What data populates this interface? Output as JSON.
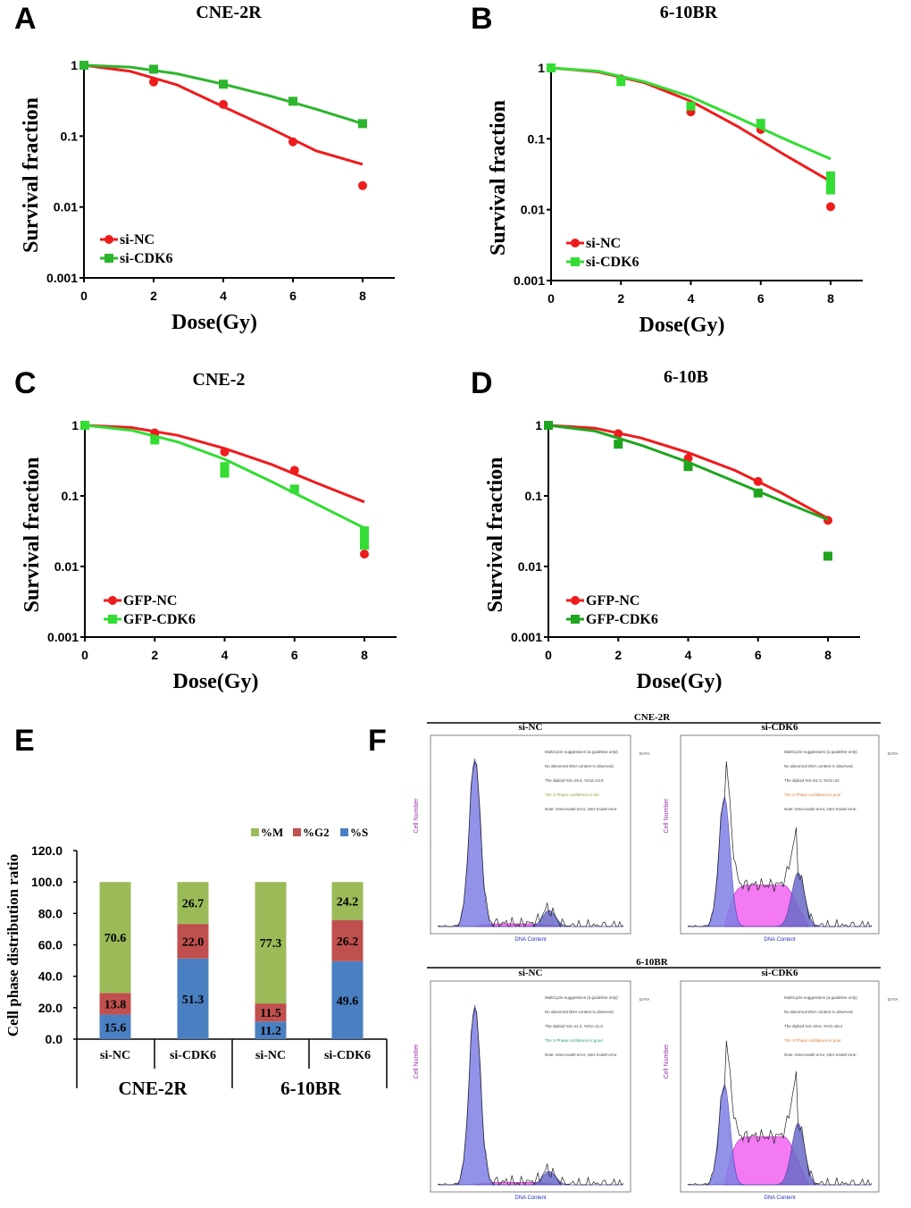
{
  "panel_letters": [
    "A",
    "B",
    "C",
    "D",
    "E",
    "F"
  ],
  "chart_data": [
    {
      "type": "line",
      "panel": "A",
      "title": "CNE-2R",
      "xlabel": "Dose(Gy)",
      "ylabel": "Survival fraction",
      "xlim": [
        0,
        8
      ],
      "ylim": [
        0.001,
        1
      ],
      "yscale": "log",
      "xticks": [
        "0",
        "2",
        "4",
        "6",
        "8"
      ],
      "yticks": [
        "1",
        "0.1",
        "0.01",
        "0.001"
      ],
      "series": [
        {
          "name": "si-NC",
          "color": "#ee1c1c",
          "marker": "circle",
          "x": [
            0,
            2,
            4,
            6,
            8
          ],
          "y": [
            1,
            0.58,
            0.28,
            0.083,
            0.02
          ],
          "fit": [
            1,
            0.82,
            0.53,
            0.26,
            0.13,
            0.062,
            0.04
          ]
        },
        {
          "name": "si-CDK6",
          "color": "#2eb52e",
          "marker": "square",
          "x": [
            0,
            2,
            4,
            6,
            8
          ],
          "y": [
            1,
            0.88,
            0.54,
            0.31,
            0.15
          ],
          "fit": [
            1,
            0.94,
            0.76,
            0.54,
            0.37,
            0.24,
            0.15
          ]
        }
      ]
    },
    {
      "type": "line",
      "panel": "B",
      "title": "6-10BR",
      "xlabel": "Dose(Gy)",
      "ylabel": "Survival fraction",
      "xlim": [
        0,
        8
      ],
      "ylim": [
        0.001,
        1
      ],
      "yscale": "log",
      "xticks": [
        "0",
        "2",
        "4",
        "6",
        "8"
      ],
      "yticks": [
        "1",
        "0.1",
        "0.01",
        "0.001"
      ],
      "series": [
        {
          "name": "si-NC",
          "color": "#ee1c1c",
          "marker": "circle",
          "x": [
            0,
            2,
            4,
            6,
            8,
            8
          ],
          "y": [
            1,
            0.7,
            0.24,
            0.135,
            0.011,
            0.02
          ],
          "fit": [
            1,
            0.88,
            0.62,
            0.34,
            0.15,
            0.06,
            0.025
          ]
        },
        {
          "name": "si-CDK6",
          "color": "#33dd33",
          "marker": "square",
          "x": [
            0,
            2,
            4,
            6,
            8,
            8,
            8
          ],
          "y": [
            1,
            0.64,
            0.29,
            0.165,
            0.03,
            0.025,
            0.019
          ],
          "fit": [
            1,
            0.9,
            0.64,
            0.39,
            0.2,
            0.1,
            0.052
          ]
        }
      ]
    },
    {
      "type": "line",
      "panel": "C",
      "title": "CNE-2",
      "xlabel": "Dose(Gy)",
      "ylabel": "Survival fraction",
      "xlim": [
        0,
        8
      ],
      "ylim": [
        0.001,
        1
      ],
      "yscale": "log",
      "xticks": [
        "0",
        "2",
        "4",
        "6",
        "8"
      ],
      "yticks": [
        "1",
        "0.1",
        "0.01",
        "0.001"
      ],
      "series": [
        {
          "name": "GFP-NC",
          "color": "#ee1c1c",
          "marker": "circle",
          "x": [
            0,
            2,
            4,
            6,
            8
          ],
          "y": [
            1,
            0.78,
            0.42,
            0.23,
            0.015
          ],
          "fit": [
            1,
            0.93,
            0.72,
            0.47,
            0.28,
            0.15,
            0.082
          ]
        },
        {
          "name": "GFP-CDK6",
          "color": "#33dd33",
          "marker": "square",
          "x": [
            0,
            2,
            4,
            4,
            6,
            8,
            8,
            8
          ],
          "y": [
            1,
            0.62,
            0.26,
            0.21,
            0.125,
            0.032,
            0.025,
            0.02
          ],
          "fit": [
            1,
            0.85,
            0.58,
            0.33,
            0.16,
            0.075,
            0.035
          ]
        }
      ]
    },
    {
      "type": "line",
      "panel": "D",
      "title": "6-10B",
      "xlabel": "Dose(Gy)",
      "ylabel": "Survival fraction",
      "xlim": [
        0,
        8
      ],
      "ylim": [
        0.001,
        1
      ],
      "yscale": "log",
      "xticks": [
        "0",
        "2",
        "4",
        "6",
        "8"
      ],
      "yticks": [
        "1",
        "0.1",
        "0.01",
        "0.001"
      ],
      "series": [
        {
          "name": "GFP-NC",
          "color": "#ee1c1c",
          "marker": "circle",
          "x": [
            0,
            2,
            4,
            6,
            8
          ],
          "y": [
            1,
            0.76,
            0.34,
            0.16,
            0.045
          ],
          "fit": [
            1,
            0.91,
            0.66,
            0.41,
            0.23,
            0.11,
            0.048
          ]
        },
        {
          "name": "GFP-CDK6",
          "color": "#1fa51f",
          "marker": "square",
          "x": [
            0,
            2,
            4,
            6,
            8
          ],
          "y": [
            1,
            0.54,
            0.26,
            0.11,
            0.014
          ],
          "fit": [
            1,
            0.83,
            0.52,
            0.3,
            0.16,
            0.085,
            0.046
          ]
        }
      ]
    },
    {
      "type": "bar",
      "panel": "E",
      "stacked": true,
      "ylabel": "Cell phase distribution ratio",
      "ylim": [
        0,
        120
      ],
      "yticks": [
        "0.0",
        "20.0",
        "40.0",
        "60.0",
        "80.0",
        "100.0",
        "120.0"
      ],
      "categories": [
        "si-NC",
        "si-CDK6",
        "si-NC",
        "si-CDK6"
      ],
      "groups": [
        "CNE-2R",
        "6-10BR"
      ],
      "series": [
        {
          "name": "%S",
          "color": "#4a7fc1",
          "values": [
            15.6,
            51.3,
            11.2,
            49.6
          ]
        },
        {
          "name": "%G2",
          "color": "#c0504d",
          "values": [
            13.8,
            22.0,
            11.5,
            26.2
          ]
        },
        {
          "name": "%M",
          "color": "#9bbb59",
          "values": [
            70.6,
            26.7,
            77.3,
            24.2
          ]
        }
      ],
      "legend_order": [
        "%M",
        "%G2",
        "%S"
      ]
    }
  ],
  "panel_f": {
    "groups": [
      {
        "title": "CNE-2R",
        "plots": [
          {
            "label": "si-NC",
            "note": "The S Phase confidence is fair",
            "diploid": "The diploid %S=15.6, %G2=13.8"
          },
          {
            "label": "si-CDK6",
            "note": "The S Phase confidence is poor",
            "diploid": "The diploid %S=51.3, %G2=22"
          }
        ]
      },
      {
        "title": "6-10BR",
        "plots": [
          {
            "label": "si-NC",
            "note": "The S Phase confidence is good",
            "diploid": "The diploid %S=11.2, %G2=11.5"
          },
          {
            "label": "si-CDK6",
            "note": "The S Phase confidence is poor",
            "diploid": "The diploid %S=49.6, %G2=26.2"
          }
        ]
      }
    ],
    "xlabel": "DNA Content",
    "ylabel": "Cell Number",
    "suggest": "MultiCycle suggestions (a guideline only):",
    "abnormal": "No abnormal DNA content is observed.",
    "noise": "Note: intra-model error, inter-model error.",
    "data_label": "DATA"
  }
}
